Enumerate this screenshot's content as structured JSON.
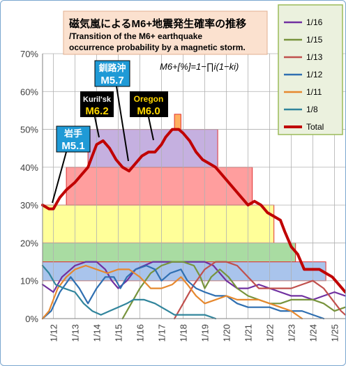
{
  "title": {
    "line1": "磁気嵐によるM6+地震発生確率の推移",
    "line2": "/Transition of the M6+ earthquake",
    "line3": "occurrence probability by a magnetic storm."
  },
  "formula": "M6+[%]=1−∏i(1−ki)",
  "annotations": [
    {
      "place": "岩手",
      "mag": "M5.1",
      "box": "blue"
    },
    {
      "place": "Kuril'sk",
      "mag": "M6.2",
      "box": "black"
    },
    {
      "place": "釧路沖",
      "mag": "M5.7",
      "box": "blue"
    },
    {
      "place": "Oregon",
      "mag": "M6.0",
      "box": "black"
    }
  ],
  "chart_data": {
    "type": "line",
    "x_ticks": [
      "1/12",
      "1/13",
      "1/14",
      "1/15",
      "1/16",
      "1/17",
      "1/18",
      "1/19",
      "1/20",
      "1/21",
      "1/22",
      "1/23",
      "1/24",
      "1/25"
    ],
    "y_ticks": [
      "0%",
      "10%",
      "20%",
      "30%",
      "40%",
      "50%",
      "60%",
      "70%"
    ],
    "ylim": [
      0,
      70
    ],
    "xlim": [
      11.5,
      25.5
    ],
    "grid": true,
    "legend_position": "right",
    "bands": [
      {
        "from": 11.5,
        "to": 24.6,
        "y0": 10,
        "y1": 15,
        "color": "#a9c4ec"
      },
      {
        "from": 11.5,
        "to": 23.2,
        "y0": 15,
        "y1": 20,
        "color": "#a9dca2"
      },
      {
        "from": 11.5,
        "to": 22.2,
        "y0": 20,
        "y1": 30,
        "color": "#ffff99"
      },
      {
        "from": 12.6,
        "to": 21.2,
        "y0": 30,
        "y1": 40,
        "color": "#ff9e9e"
      },
      {
        "from": 13.6,
        "to": 19.6,
        "y0": 40,
        "y1": 50,
        "color": "#c5b0e0"
      },
      {
        "from": 17.6,
        "to": 17.9,
        "y0": 50,
        "y1": 54,
        "color": "#ffb060"
      }
    ],
    "series": [
      {
        "name": "1/16",
        "color": "#7030a0",
        "points": [
          [
            11.5,
            9
          ],
          [
            12.0,
            7
          ],
          [
            12.4,
            11
          ],
          [
            13.0,
            14
          ],
          [
            13.5,
            15
          ],
          [
            14.0,
            15
          ],
          [
            14.4,
            13
          ],
          [
            14.7,
            10
          ],
          [
            15.0,
            8
          ],
          [
            15.4,
            10
          ],
          [
            15.8,
            13
          ],
          [
            16.2,
            14
          ],
          [
            16.6,
            15
          ],
          [
            17.0,
            15
          ],
          [
            17.4,
            15
          ],
          [
            17.8,
            15
          ],
          [
            18.2,
            15
          ],
          [
            18.6,
            15
          ],
          [
            19.0,
            15
          ],
          [
            19.4,
            14
          ],
          [
            19.7,
            12
          ],
          [
            20.0,
            10
          ],
          [
            20.5,
            8
          ],
          [
            21.0,
            8
          ],
          [
            21.5,
            9
          ],
          [
            22.0,
            8
          ],
          [
            22.5,
            7
          ],
          [
            23.0,
            6
          ],
          [
            23.5,
            6
          ],
          [
            24.0,
            5
          ],
          [
            24.5,
            6
          ],
          [
            25.0,
            7
          ],
          [
            25.5,
            6
          ]
        ]
      },
      {
        "name": "1/15",
        "color": "#77933c",
        "points": [
          [
            15.2,
            0
          ],
          [
            15.6,
            4
          ],
          [
            16.0,
            8
          ],
          [
            16.5,
            12
          ],
          [
            17.0,
            14
          ],
          [
            17.5,
            15
          ],
          [
            18.0,
            15
          ],
          [
            18.5,
            14
          ],
          [
            18.8,
            11
          ],
          [
            19.0,
            8
          ],
          [
            19.3,
            11
          ],
          [
            19.7,
            13
          ],
          [
            20.1,
            11
          ],
          [
            20.5,
            8
          ],
          [
            21.0,
            6
          ],
          [
            21.5,
            5
          ],
          [
            22.0,
            4
          ],
          [
            22.5,
            4
          ],
          [
            23.0,
            5
          ],
          [
            23.5,
            5
          ],
          [
            24.0,
            5
          ],
          [
            24.5,
            4
          ],
          [
            25.0,
            2
          ],
          [
            25.5,
            3
          ]
        ]
      },
      {
        "name": "1/13",
        "color": "#c0504d",
        "points": [
          [
            17.6,
            0
          ],
          [
            18.0,
            4
          ],
          [
            18.5,
            9
          ],
          [
            19.0,
            13
          ],
          [
            19.5,
            15
          ],
          [
            20.0,
            15
          ],
          [
            20.5,
            14
          ],
          [
            21.0,
            11
          ],
          [
            21.5,
            8
          ],
          [
            22.0,
            8
          ],
          [
            22.5,
            8
          ],
          [
            23.0,
            8
          ],
          [
            23.5,
            9
          ],
          [
            24.0,
            10
          ],
          [
            24.5,
            8
          ],
          [
            24.9,
            5
          ],
          [
            25.3,
            2
          ],
          [
            25.5,
            1
          ]
        ]
      },
      {
        "name": "1/12",
        "color": "#2f6fb1",
        "points": [
          [
            11.5,
            0
          ],
          [
            11.9,
            2
          ],
          [
            12.3,
            7
          ],
          [
            12.8,
            11
          ],
          [
            13.2,
            8
          ],
          [
            13.6,
            4
          ],
          [
            14.0,
            8
          ],
          [
            14.4,
            11
          ],
          [
            14.8,
            11
          ],
          [
            15.1,
            8
          ],
          [
            15.4,
            11
          ],
          [
            15.8,
            13
          ],
          [
            16.3,
            14
          ],
          [
            16.7,
            13
          ],
          [
            17.0,
            10
          ],
          [
            17.4,
            12
          ],
          [
            17.9,
            13
          ],
          [
            18.2,
            10
          ],
          [
            18.6,
            8
          ],
          [
            19.0,
            7
          ],
          [
            19.5,
            6
          ],
          [
            20.0,
            6
          ],
          [
            20.5,
            4
          ],
          [
            21.0,
            3
          ],
          [
            21.5,
            3
          ],
          [
            22.0,
            3
          ],
          [
            22.5,
            2
          ],
          [
            23.0,
            2
          ],
          [
            23.5,
            2
          ],
          [
            24.0,
            1
          ],
          [
            24.5,
            0
          ]
        ]
      },
      {
        "name": "1/11",
        "color": "#e6882e",
        "points": [
          [
            11.5,
            0
          ],
          [
            11.8,
            2
          ],
          [
            12.2,
            8
          ],
          [
            12.6,
            11
          ],
          [
            13.0,
            13
          ],
          [
            13.5,
            14
          ],
          [
            14.0,
            13
          ],
          [
            14.5,
            12
          ],
          [
            15.0,
            13
          ],
          [
            15.5,
            13
          ],
          [
            16.0,
            11
          ],
          [
            16.5,
            8
          ],
          [
            17.0,
            8
          ],
          [
            17.5,
            9
          ],
          [
            17.9,
            11
          ],
          [
            18.2,
            9
          ],
          [
            18.6,
            6
          ],
          [
            19.0,
            4
          ],
          [
            19.5,
            5
          ],
          [
            20.0,
            6
          ],
          [
            20.5,
            5
          ],
          [
            21.0,
            5
          ],
          [
            21.5,
            5
          ],
          [
            22.0,
            4
          ],
          [
            22.5,
            3
          ],
          [
            23.0,
            2
          ],
          [
            23.5,
            0
          ]
        ]
      },
      {
        "name": "1/8",
        "color": "#31859c",
        "points": [
          [
            11.5,
            14
          ],
          [
            11.8,
            12
          ],
          [
            12.1,
            9
          ],
          [
            12.5,
            8
          ],
          [
            13.0,
            7
          ],
          [
            13.4,
            4
          ],
          [
            13.8,
            2
          ],
          [
            14.2,
            1
          ],
          [
            14.6,
            2
          ],
          [
            15.0,
            3
          ],
          [
            15.4,
            4
          ],
          [
            15.7,
            5
          ],
          [
            16.2,
            5
          ],
          [
            16.7,
            4
          ],
          [
            17.0,
            3
          ],
          [
            17.3,
            2
          ],
          [
            17.6,
            1
          ],
          [
            18.0,
            1
          ],
          [
            18.5,
            1
          ],
          [
            19.0,
            1
          ],
          [
            19.5,
            0
          ]
        ]
      },
      {
        "name": "Total",
        "color": "#c00000",
        "points": [
          [
            11.5,
            30
          ],
          [
            11.8,
            29
          ],
          [
            12.0,
            29
          ],
          [
            12.3,
            32
          ],
          [
            12.6,
            34
          ],
          [
            13.0,
            36
          ],
          [
            13.3,
            38
          ],
          [
            13.6,
            40
          ],
          [
            13.8,
            43
          ],
          [
            14.0,
            46
          ],
          [
            14.3,
            47
          ],
          [
            14.6,
            45
          ],
          [
            14.9,
            42
          ],
          [
            15.2,
            40
          ],
          [
            15.5,
            39
          ],
          [
            15.8,
            41
          ],
          [
            16.1,
            43
          ],
          [
            16.4,
            44
          ],
          [
            16.7,
            44
          ],
          [
            17.0,
            46
          ],
          [
            17.2,
            48
          ],
          [
            17.5,
            50
          ],
          [
            17.8,
            50
          ],
          [
            18.0,
            49
          ],
          [
            18.3,
            47
          ],
          [
            18.6,
            44
          ],
          [
            18.9,
            42
          ],
          [
            19.2,
            41
          ],
          [
            19.5,
            40
          ],
          [
            19.8,
            38
          ],
          [
            20.1,
            36
          ],
          [
            20.4,
            34
          ],
          [
            20.7,
            32
          ],
          [
            21.0,
            30
          ],
          [
            21.3,
            31
          ],
          [
            21.6,
            30
          ],
          [
            21.9,
            28
          ],
          [
            22.2,
            27
          ],
          [
            22.5,
            26
          ],
          [
            22.7,
            23
          ],
          [
            23.0,
            19
          ],
          [
            23.3,
            17
          ],
          [
            23.6,
            13
          ],
          [
            24.0,
            13
          ],
          [
            24.3,
            13
          ],
          [
            24.6,
            12
          ],
          [
            24.9,
            11
          ],
          [
            25.2,
            9
          ],
          [
            25.5,
            7
          ]
        ]
      }
    ]
  }
}
